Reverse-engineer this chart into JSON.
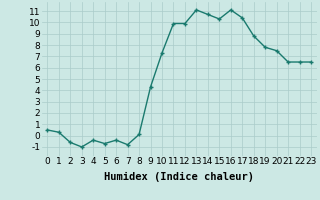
{
  "x": [
    0,
    1,
    2,
    3,
    4,
    5,
    6,
    7,
    8,
    9,
    10,
    11,
    12,
    13,
    14,
    15,
    16,
    17,
    18,
    19,
    20,
    21,
    22,
    23
  ],
  "y": [
    0.5,
    0.3,
    -0.6,
    -1.0,
    -0.4,
    -0.7,
    -0.4,
    -0.8,
    0.1,
    4.3,
    7.3,
    9.9,
    9.9,
    11.1,
    10.7,
    10.3,
    11.1,
    10.4,
    8.8,
    7.8,
    7.5,
    6.5,
    6.5,
    6.5
  ],
  "line_color": "#1a7a6e",
  "marker": "+",
  "bg_color": "#cce8e4",
  "grid_color": "#aaccca",
  "xlabel": "Humidex (Indice chaleur)",
  "ylim": [
    -1.8,
    11.8
  ],
  "xlim": [
    -0.5,
    23.5
  ],
  "yticks": [
    -1,
    0,
    1,
    2,
    3,
    4,
    5,
    6,
    7,
    8,
    9,
    10,
    11
  ],
  "xticks": [
    0,
    1,
    2,
    3,
    4,
    5,
    6,
    7,
    8,
    9,
    10,
    11,
    12,
    13,
    14,
    15,
    16,
    17,
    18,
    19,
    20,
    21,
    22,
    23
  ],
  "xlabel_fontsize": 7.5,
  "tick_fontsize": 6.5,
  "line_width": 1.0,
  "marker_size": 3.5
}
